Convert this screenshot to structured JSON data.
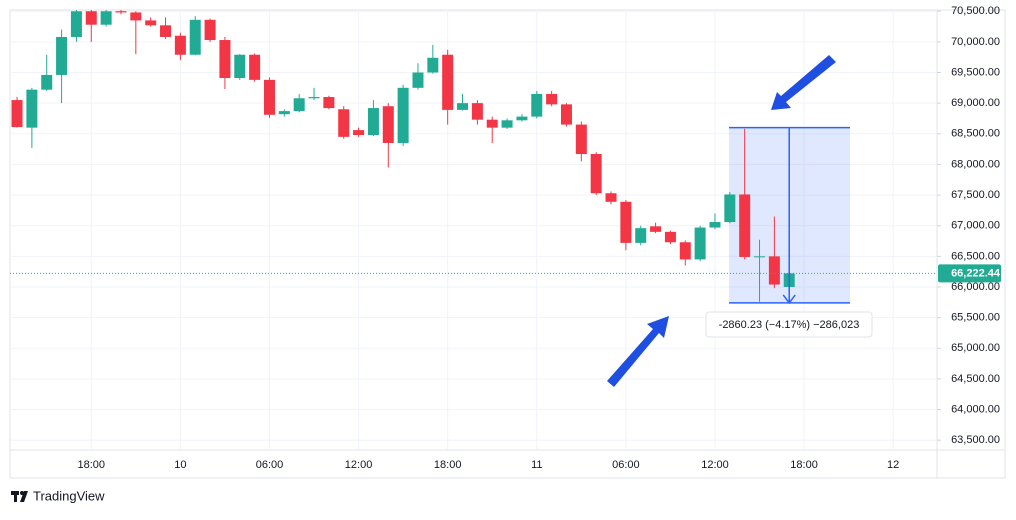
{
  "chart_data": {
    "type": "candlestick",
    "categories": [
      null,
      null,
      null,
      null,
      null,
      "18:00",
      null,
      null,
      null,
      null,
      null,
      "10",
      null,
      null,
      null,
      null,
      null,
      "06:00",
      null,
      null,
      null,
      null,
      null,
      "12:00",
      null,
      null,
      null,
      null,
      null,
      "18:00",
      null,
      null,
      null,
      null,
      null,
      "11",
      null,
      null,
      null,
      null,
      null,
      "06:00",
      null,
      null,
      null,
      null,
      null,
      "12:00",
      null,
      null,
      null,
      null,
      null,
      "18:00",
      null,
      null,
      null,
      null,
      null,
      "12",
      null,
      null
    ],
    "open": [
      69050,
      68600,
      69220,
      69460,
      70080,
      70500,
      70280,
      70500,
      70480,
      70350,
      70270,
      70100,
      69790,
      70360,
      70030,
      69410,
      69790,
      69380,
      68820,
      68870,
      69080,
      69100,
      68900,
      68560,
      68480,
      68950,
      68350,
      69250,
      69500,
      69790,
      68890,
      69000,
      68730,
      68600,
      68720,
      68780,
      69150,
      68980,
      68650,
      68170,
      67530,
      67390,
      66720,
      66990,
      66900,
      66730,
      66450,
      66970,
      67060,
      67510,
      66490,
      66500,
      66000,
      null,
      null,
      null,
      null,
      null,
      null,
      null,
      null,
      null
    ],
    "high": [
      69100,
      69250,
      69790,
      70200,
      70600,
      70550,
      70550,
      70550,
      70500,
      70400,
      70400,
      70150,
      70420,
      70380,
      70080,
      69800,
      69810,
      69420,
      68900,
      69150,
      69250,
      69120,
      68950,
      68600,
      69050,
      69000,
      69300,
      69650,
      69950,
      69870,
      69150,
      69050,
      68780,
      68750,
      68820,
      69200,
      69200,
      69000,
      68700,
      68200,
      67560,
      67420,
      67000,
      67050,
      66920,
      66760,
      67000,
      67200,
      67550,
      68580,
      66770,
      67150,
      66250,
      null,
      null,
      null,
      null,
      null,
      null,
      null,
      null,
      null
    ],
    "low": [
      68600,
      68270,
      69200,
      69000,
      70000,
      70000,
      70250,
      70450,
      69800,
      70250,
      70050,
      69700,
      69780,
      70000,
      69230,
      69380,
      69350,
      68760,
      68780,
      68850,
      69050,
      68900,
      68420,
      68450,
      68460,
      67950,
      68300,
      69220,
      69480,
      68650,
      68880,
      68650,
      68350,
      68580,
      68700,
      68750,
      68950,
      68620,
      68050,
      67500,
      67350,
      66600,
      66680,
      66880,
      66700,
      66350,
      66420,
      66940,
      67040,
      66450,
      65760,
      65980,
      65980,
      null,
      null,
      null,
      null,
      null,
      null,
      null,
      null,
      null
    ],
    "close": [
      68610,
      69220,
      69460,
      70080,
      70500,
      70280,
      70500,
      70480,
      70350,
      70270,
      70080,
      69790,
      70360,
      70030,
      69410,
      69790,
      69380,
      68810,
      68870,
      69080,
      69100,
      68920,
      68450,
      68480,
      68920,
      68350,
      69250,
      69500,
      69740,
      68890,
      69000,
      68730,
      68600,
      68720,
      68780,
      69150,
      68980,
      68650,
      68170,
      67530,
      67390,
      66720,
      66960,
      66900,
      66730,
      66450,
      66970,
      67060,
      67510,
      66490,
      66500,
      66040,
      66222.44,
      null,
      null,
      null,
      null,
      null,
      null,
      null,
      null,
      null
    ],
    "up_color": "#22ab94",
    "down_color": "#f23645",
    "ylim": [
      63340,
      70520
    ],
    "yticks": [
      {
        "value": 63500,
        "label": "63,500.00"
      },
      {
        "value": 64000,
        "label": "64,000.00"
      },
      {
        "value": 64500,
        "label": "64,500.00"
      },
      {
        "value": 65000,
        "label": "65,000.00"
      },
      {
        "value": 65500,
        "label": "65,500.00"
      },
      {
        "value": 66000,
        "label": "66,000.00"
      },
      {
        "value": 66500,
        "label": "66,500.00"
      },
      {
        "value": 67000,
        "label": "67,000.00"
      },
      {
        "value": 67500,
        "label": "67,500.00"
      },
      {
        "value": 68000,
        "label": "68,000.00"
      },
      {
        "value": 68500,
        "label": "68,500.00"
      },
      {
        "value": 69000,
        "label": "69,000.00"
      },
      {
        "value": 69500,
        "label": "69,500.00"
      },
      {
        "value": 70000,
        "label": "70,000.00"
      },
      {
        "value": 70500,
        "label": "70,500.00"
      }
    ],
    "grid": true,
    "last_price": {
      "value": 66222.44,
      "label": "66,222.44"
    },
    "measure": {
      "high": 68600,
      "low": 65740,
      "label": "-2860.23 (−4.17%) −286,023"
    },
    "brand": "TradingView"
  }
}
